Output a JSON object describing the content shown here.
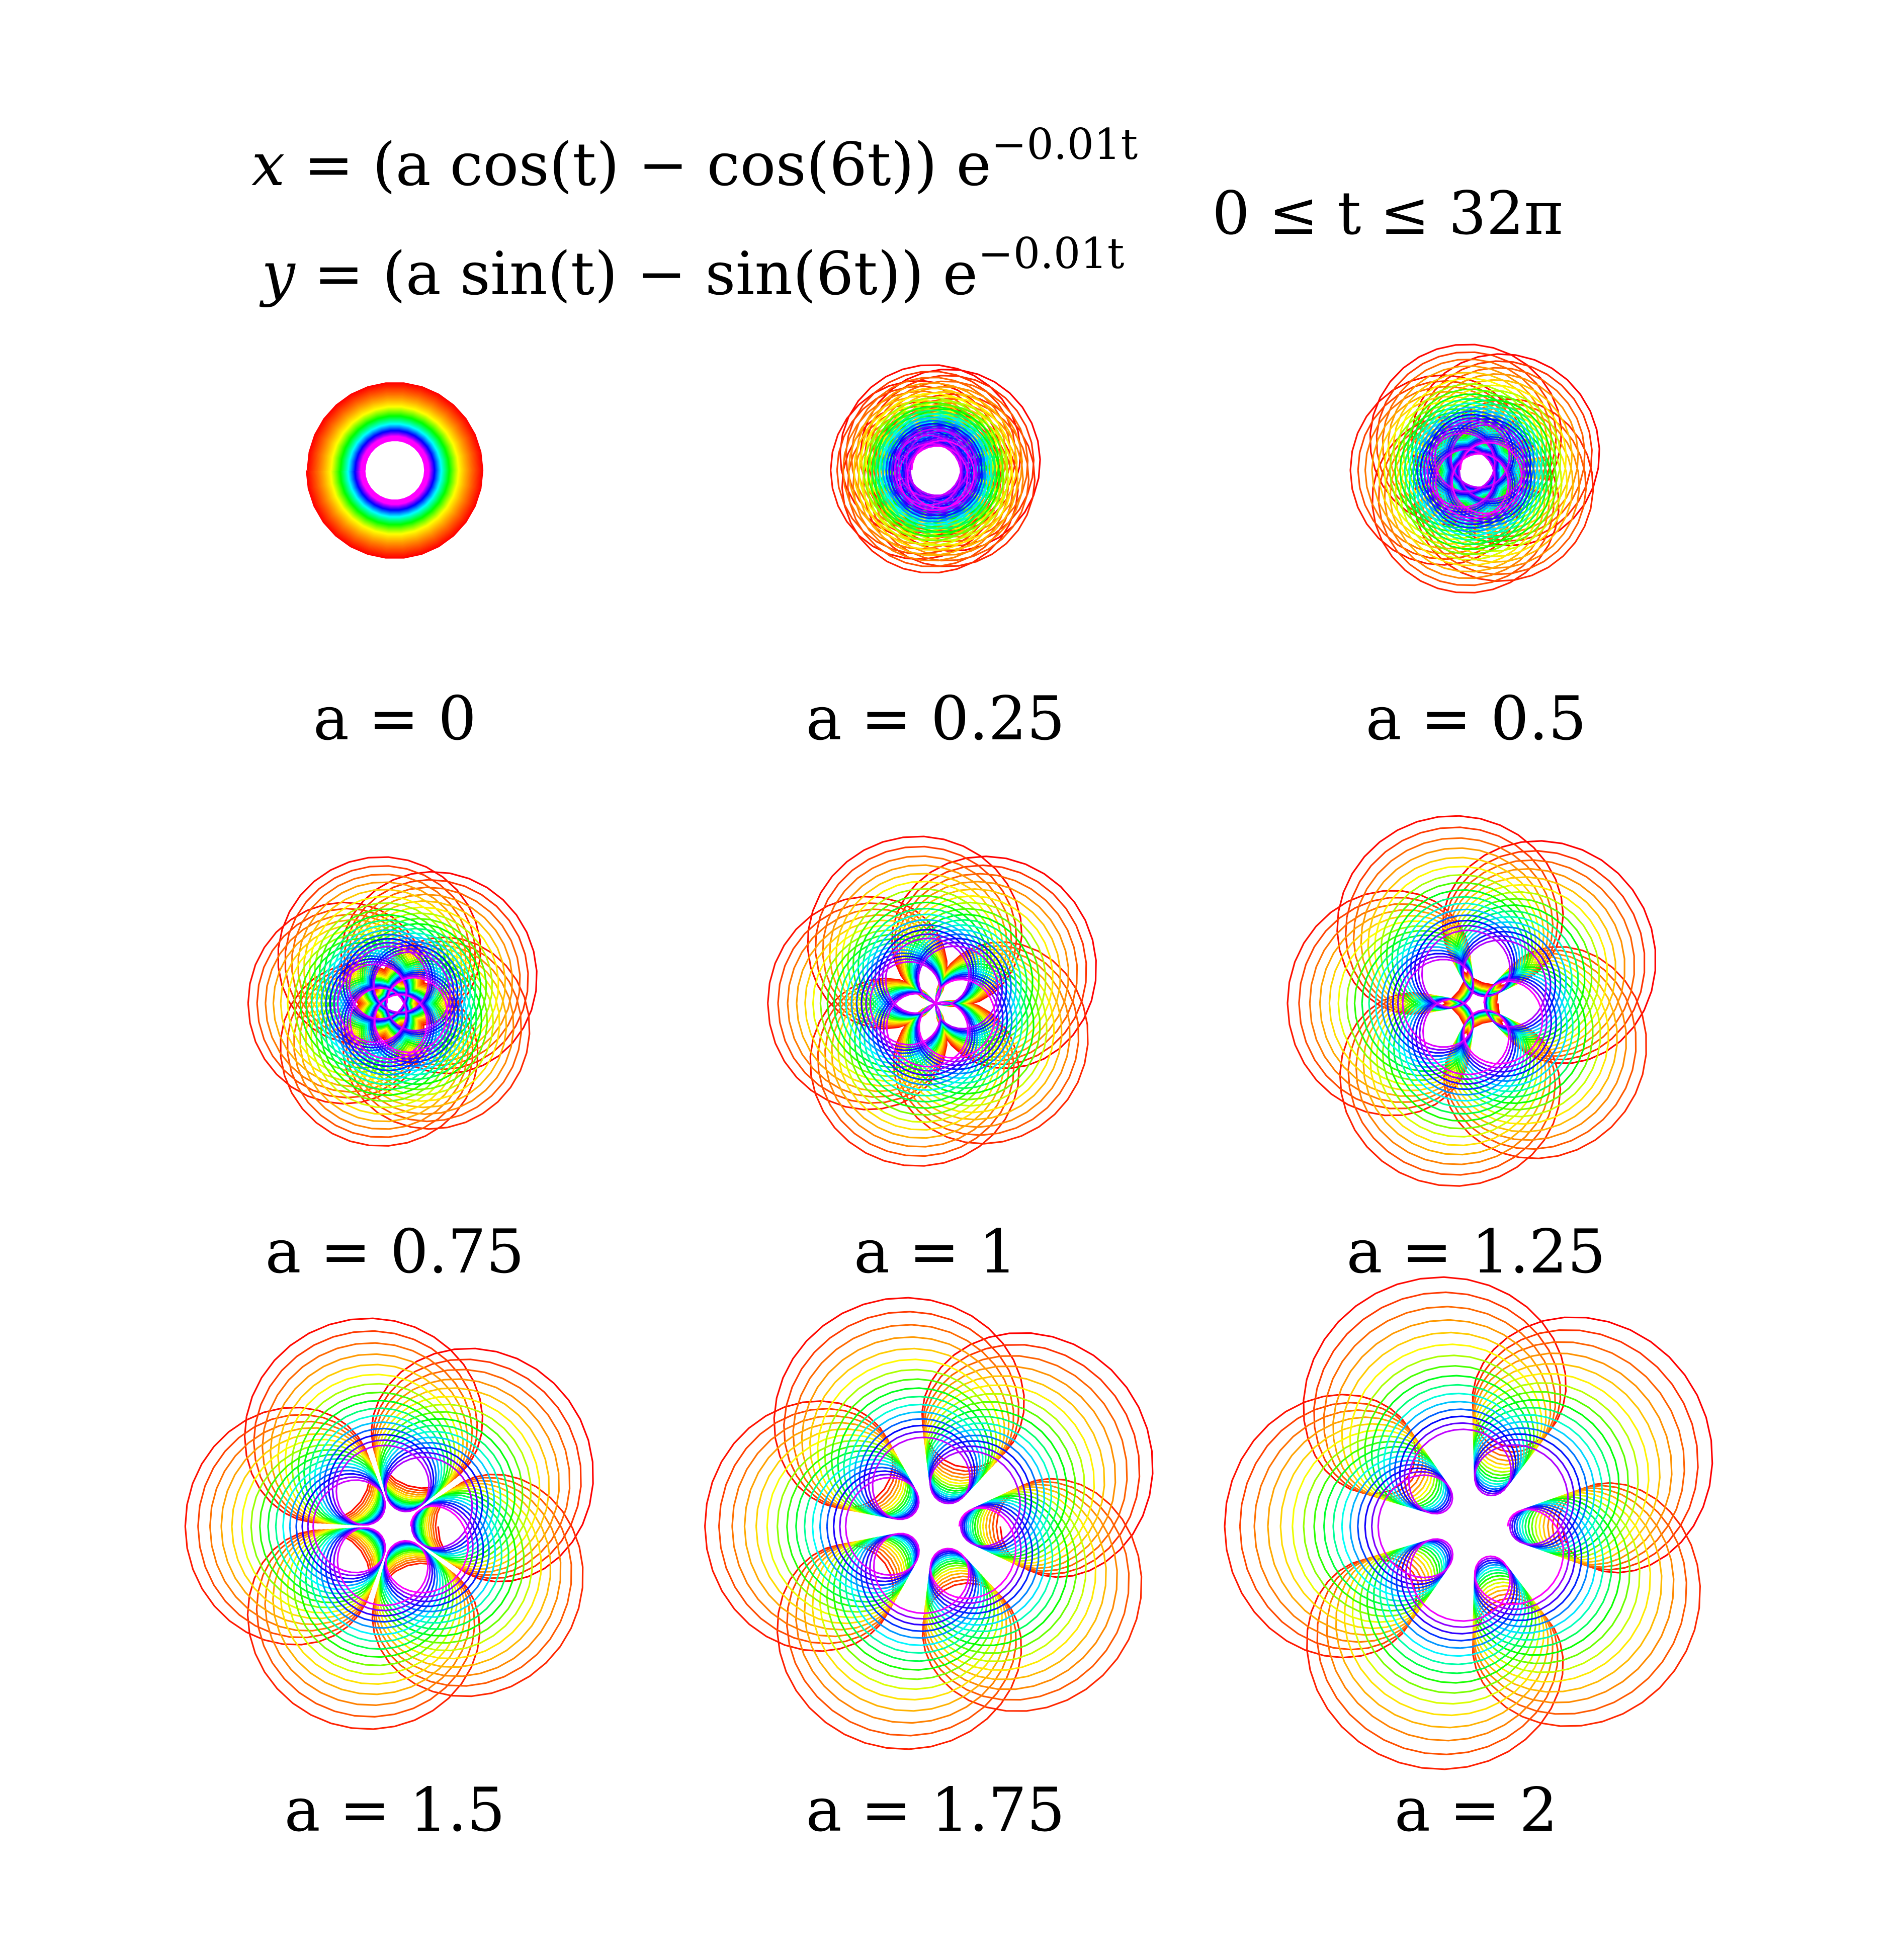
{
  "equations": {
    "x": {
      "lhs": "x",
      "body": " = (a cos(t) − cos(6t)) e",
      "exponent": "−0.01t"
    },
    "y": {
      "lhs": "y",
      "body": " = (a sin(t) − sin(6t)) e",
      "exponent": "−0.01t"
    }
  },
  "parameter_range": "0 ≤ t ≤ 32π",
  "curve": {
    "decay_rate": 0.01,
    "frequency": 6,
    "t_min": 0,
    "t_max_over_pi": 32,
    "color_map": "rainbow: red (outer, small t) through yellow, green, cyan, blue to magenta (inner, large t)"
  },
  "colors": [
    "#ff0000",
    "#ff8000",
    "#ffff00",
    "#00ff00",
    "#00ffff",
    "#0000ff",
    "#ff00ff"
  ],
  "panels": [
    {
      "a": 0,
      "label": "a = 0"
    },
    {
      "a": 0.25,
      "label": "a = 0.25"
    },
    {
      "a": 0.5,
      "label": "a = 0.5"
    },
    {
      "a": 0.75,
      "label": "a = 0.75"
    },
    {
      "a": 1,
      "label": "a = 1"
    },
    {
      "a": 1.25,
      "label": "a = 1.25"
    },
    {
      "a": 1.5,
      "label": "a = 1.5"
    },
    {
      "a": 1.75,
      "label": "a = 1.75"
    },
    {
      "a": 2,
      "label": "a = 2"
    }
  ]
}
